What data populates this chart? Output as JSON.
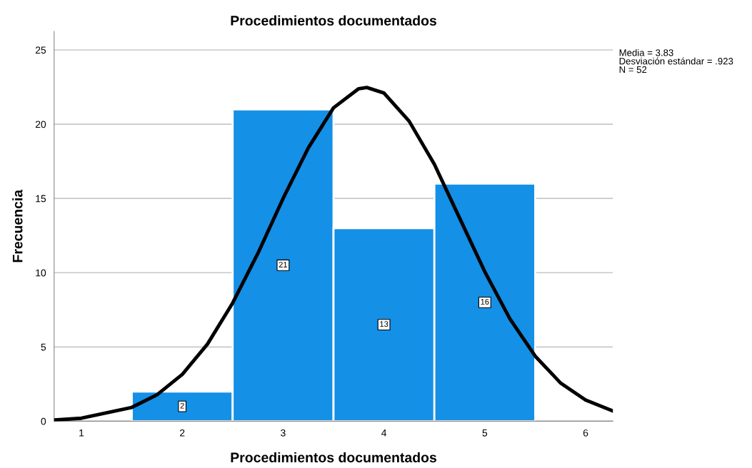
{
  "chart_data": {
    "type": "histogram",
    "title": "Procedimientos documentados",
    "xlabel": "Procedimientos documentados",
    "ylabel": "Frecuencia",
    "bins": [
      1.5,
      2.5,
      3.5,
      4.5,
      5.5
    ],
    "values": [
      2,
      21,
      13,
      16
    ],
    "color": "#1490e6",
    "value_labels": [
      "2",
      "21",
      "13",
      "16"
    ],
    "series": [
      {
        "type": "line",
        "color": "#000000",
        "x": [
          0.73,
          1,
          1.5,
          1.75,
          2,
          2.25,
          2.5,
          2.75,
          3,
          3.25,
          3.5,
          3.75,
          3.83,
          4,
          4.25,
          4.5,
          4.75,
          5,
          5.25,
          5.5,
          5.75,
          6,
          6.27
        ],
        "values": [
          0.08,
          0.2,
          0.93,
          1.78,
          3.15,
          5.19,
          7.96,
          11.3,
          15.0,
          18.4,
          21.1,
          22.39,
          22.47,
          22.1,
          20.2,
          17.3,
          13.68,
          10.07,
          6.88,
          4.38,
          2.58,
          1.42,
          0.69
        ]
      }
    ],
    "xlim": [
      0.73,
      6.27
    ],
    "xticks": [
      1,
      2,
      3,
      4,
      5,
      6
    ],
    "ylim": [
      0,
      26.25
    ],
    "yticks": [
      0,
      5,
      10,
      15,
      20,
      25
    ],
    "grid": "y",
    "annotations": [
      "Media = 3.83\nDesviación estándar = .923\nN = 52"
    ]
  }
}
